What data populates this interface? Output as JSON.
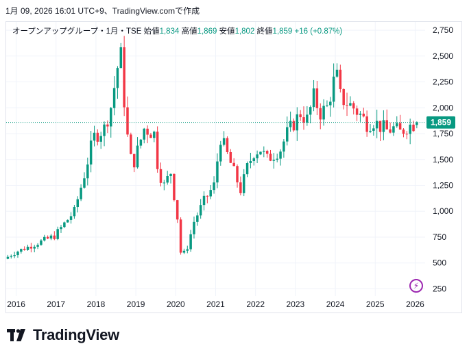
{
  "header": {
    "timestamp": "1月 09, 2026 16:01 UTC+9、TradingView.comで作成"
  },
  "legend": {
    "symbol": "オープンアップグループ・1月・TSE",
    "open_label": "始値",
    "open": "1,834",
    "high_label": "高値",
    "high": "1,869",
    "low_label": "安値",
    "low": "1,802",
    "close_label": "終値",
    "close": "1,859",
    "change": "+16 (+0.87%)"
  },
  "price_label": "1,859",
  "logo_text": "TradingView",
  "colors": {
    "up": "#089981",
    "down": "#f23645",
    "grid": "#f0f3fa",
    "text": "#131722",
    "accent": "#9c27b0"
  },
  "chart_data": {
    "type": "candlestick",
    "title": "オープンアップグループ・1月・TSE",
    "ylim": [
      180,
      2830
    ],
    "yticks": [
      250,
      500,
      750,
      1000,
      1250,
      1500,
      1750,
      2000,
      2250,
      2500,
      2750
    ],
    "ytick_labels": [
      "250",
      "500",
      "750",
      "1,000",
      "1,250",
      "1,500",
      "1,750",
      "2,000",
      "2,250",
      "2,500",
      "2,750"
    ],
    "xlim": [
      2015.75,
      2026.25
    ],
    "xticks": [
      2016,
      2017,
      2018,
      2019,
      2020,
      2021,
      2022,
      2023,
      2024,
      2025,
      2026
    ],
    "xtick_labels": [
      "2016",
      "2017",
      "2018",
      "2019",
      "2020",
      "2021",
      "2022",
      "2023",
      "2024",
      "2025",
      "2026"
    ],
    "last_price": 1859,
    "anchors": [
      [
        2015.75,
        540
      ],
      [
        2016.0,
        600
      ],
      [
        2016.5,
        680
      ],
      [
        2017.0,
        760
      ],
      [
        2017.5,
        1000
      ],
      [
        2017.75,
        1350
      ],
      [
        2017.92,
        1620
      ],
      [
        2018.0,
        1720
      ],
      [
        2018.25,
        1800
      ],
      [
        2018.45,
        2050
      ],
      [
        2018.55,
        2350
      ],
      [
        2018.67,
        2500
      ],
      [
        2018.8,
        1800
      ],
      [
        2018.92,
        1500
      ],
      [
        2019.0,
        1480
      ],
      [
        2019.25,
        1800
      ],
      [
        2019.5,
        1750
      ],
      [
        2019.6,
        1400
      ],
      [
        2019.75,
        1250
      ],
      [
        2019.92,
        1380
      ],
      [
        2020.0,
        1150
      ],
      [
        2020.08,
        950
      ],
      [
        2020.18,
        550
      ],
      [
        2020.33,
        650
      ],
      [
        2020.5,
        900
      ],
      [
        2020.75,
        1100
      ],
      [
        2021.0,
        1250
      ],
      [
        2021.08,
        1480
      ],
      [
        2021.17,
        1720
      ],
      [
        2021.33,
        1550
      ],
      [
        2021.5,
        1380
      ],
      [
        2021.67,
        1200
      ],
      [
        2021.83,
        1420
      ],
      [
        2022.0,
        1570
      ],
      [
        2022.17,
        1600
      ],
      [
        2022.33,
        1500
      ],
      [
        2022.5,
        1550
      ],
      [
        2022.67,
        1600
      ],
      [
        2022.83,
        1750
      ],
      [
        2023.0,
        1850
      ],
      [
        2023.17,
        1950
      ],
      [
        2023.33,
        1880
      ],
      [
        2023.5,
        2100
      ],
      [
        2023.67,
        1950
      ],
      [
        2023.83,
        2000
      ],
      [
        2024.0,
        2250
      ],
      [
        2024.08,
        2300
      ],
      [
        2024.17,
        2100
      ],
      [
        2024.33,
        2050
      ],
      [
        2024.5,
        2000
      ],
      [
        2024.67,
        1930
      ],
      [
        2024.83,
        1850
      ],
      [
        2025.0,
        1870
      ],
      [
        2025.17,
        1820
      ],
      [
        2025.33,
        1780
      ],
      [
        2025.5,
        1800
      ],
      [
        2025.67,
        1760
      ],
      [
        2025.83,
        1820
      ],
      [
        2026.0,
        1843
      ]
    ],
    "last_candle": {
      "open": 1834,
      "high": 1869,
      "low": 1802,
      "close": 1859
    }
  }
}
